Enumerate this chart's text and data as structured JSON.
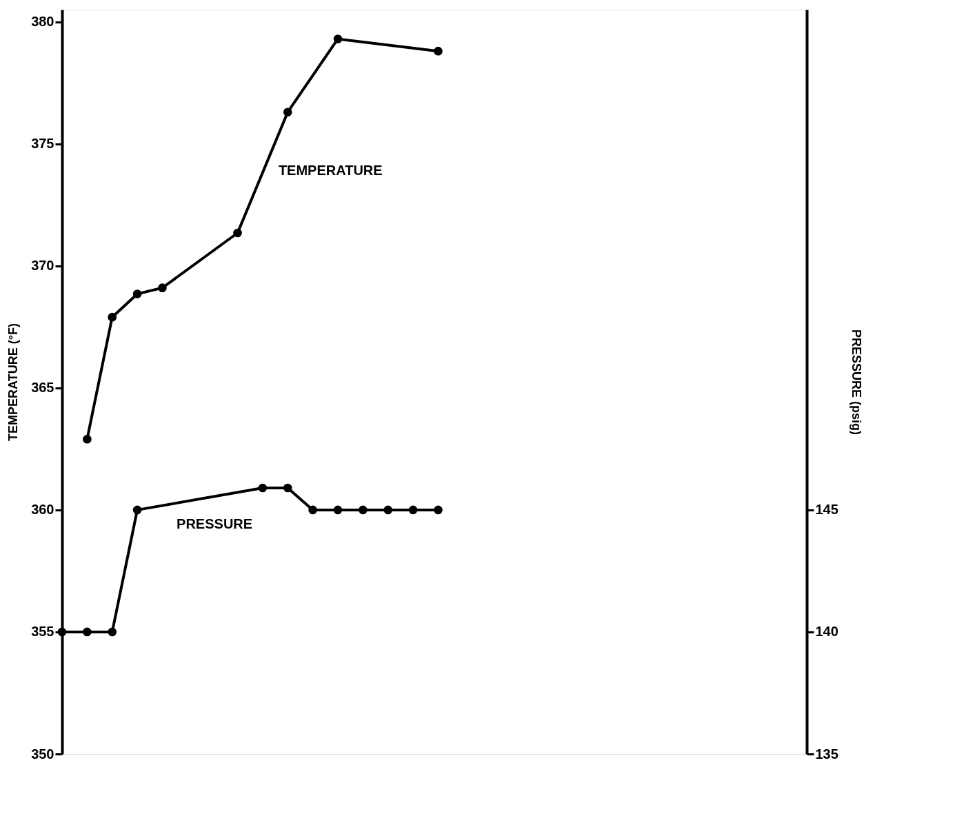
{
  "chart_data": {
    "type": "line",
    "ylabel": "TEMPERATURE (°F)",
    "y2label": "PRESSURE (psig)",
    "categories": [
      null,
      null,
      null,
      null,
      null,
      null,
      null,
      null,
      null,
      null,
      null,
      null,
      null,
      null,
      null,
      null
    ],
    "ylim": [
      350,
      380.5
    ],
    "yticks": [
      350,
      355,
      360,
      365,
      370,
      375,
      380
    ],
    "y2lim": [
      135,
      165.5
    ],
    "y2ticks": [
      135,
      140,
      145
    ],
    "marker": "circle",
    "line_style": "solid",
    "series": [
      {
        "name": "TEMPERATURE",
        "color": "#000000",
        "values": [
          null,
          362.9,
          367.9,
          368.85,
          369.1,
          null,
          null,
          371.35,
          null,
          376.3,
          null,
          379.3,
          null,
          null,
          null,
          378.8
        ]
      },
      {
        "name": "PRESSURE",
        "color": "#000000",
        "axis": "y2",
        "values": [
          140,
          140,
          140,
          145,
          null,
          null,
          null,
          null,
          145.9,
          145.9,
          145,
          145,
          145,
          145,
          145,
          145
        ]
      }
    ]
  }
}
